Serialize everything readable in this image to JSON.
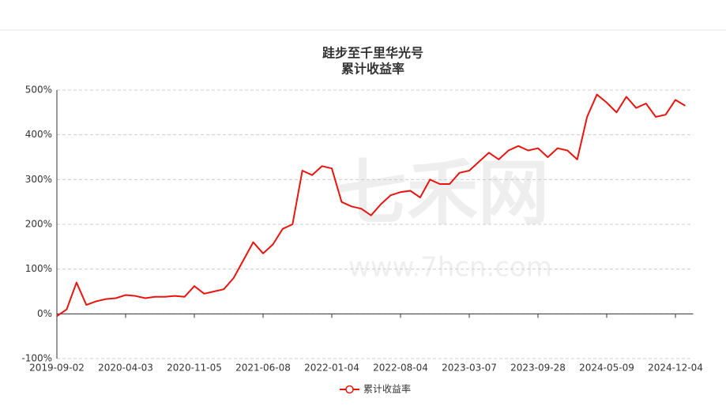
{
  "chart_data": {
    "type": "line",
    "title": "跬步至千里华光号",
    "subtitle": "累计收益率",
    "watermark": [
      "七禾网",
      "www.7hcn.com"
    ],
    "categories": [
      "2019-09-02",
      null,
      null,
      null,
      null,
      null,
      null,
      "2020-04-03",
      null,
      null,
      null,
      null,
      null,
      null,
      "2020-11-05",
      null,
      null,
      null,
      null,
      null,
      null,
      "2021-06-08",
      null,
      null,
      null,
      null,
      null,
      null,
      "2022-01-04",
      null,
      null,
      null,
      null,
      null,
      null,
      "2022-08-04",
      null,
      null,
      null,
      null,
      null,
      null,
      "2023-03-07",
      null,
      null,
      null,
      null,
      null,
      null,
      "2023-09-28",
      null,
      null,
      null,
      null,
      null,
      null,
      "2024-05-09",
      null,
      null,
      null,
      null,
      null,
      null,
      "2024-12-04",
      null
    ],
    "series": [
      {
        "name": "累计收益率",
        "color": "#e8150f",
        "values": [
          -5,
          10,
          70,
          20,
          28,
          33,
          35,
          42,
          40,
          35,
          38,
          38,
          40,
          38,
          62,
          45,
          50,
          55,
          80,
          120,
          160,
          135,
          155,
          190,
          200,
          320,
          310,
          330,
          325,
          250,
          240,
          235,
          220,
          245,
          265,
          272,
          275,
          260,
          300,
          290,
          290,
          315,
          320,
          340,
          360,
          345,
          365,
          375,
          365,
          370,
          350,
          370,
          365,
          345,
          440,
          490,
          472,
          450,
          485,
          460,
          470,
          440,
          445,
          478,
          465
        ]
      }
    ],
    "ylim": [
      -100,
      500
    ],
    "yticks": [
      {
        "value": -100,
        "label": "-100%"
      },
      {
        "value": 0,
        "label": "0%"
      },
      {
        "value": 100,
        "label": "100%"
      },
      {
        "value": 200,
        "label": "200%"
      },
      {
        "value": 300,
        "label": "300%"
      },
      {
        "value": 400,
        "label": "400%"
      },
      {
        "value": 500,
        "label": "500%"
      }
    ],
    "grid": true
  }
}
